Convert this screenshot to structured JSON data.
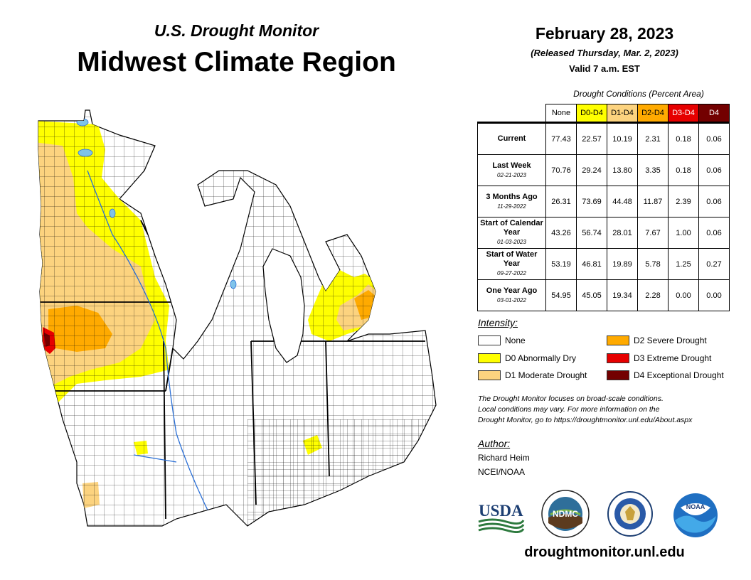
{
  "header": {
    "subtitle": "U.S. Drought Monitor",
    "title": "Midwest Climate Region"
  },
  "info": {
    "date": "February 28, 2023",
    "released": "(Released Thursday, Mar. 2, 2023)",
    "valid": "Valid 7 a.m. EST"
  },
  "table": {
    "caption": "Drought Conditions (Percent Area)",
    "columns": [
      "None",
      "D0-D4",
      "D1-D4",
      "D2-D4",
      "D3-D4",
      "D4"
    ],
    "rows": [
      {
        "label": "Current",
        "date": "",
        "values": [
          "77.43",
          "22.57",
          "10.19",
          "2.31",
          "0.18",
          "0.06"
        ]
      },
      {
        "label": "Last Week",
        "date": "02-21-2023",
        "values": [
          "70.76",
          "29.24",
          "13.80",
          "3.35",
          "0.18",
          "0.06"
        ]
      },
      {
        "label": "3 Months Ago",
        "date": "11-29-2022",
        "values": [
          "26.31",
          "73.69",
          "44.48",
          "11.87",
          "2.39",
          "0.06"
        ]
      },
      {
        "label": "Start of Calendar Year",
        "date": "01-03-2023",
        "values": [
          "43.26",
          "56.74",
          "28.01",
          "7.67",
          "1.00",
          "0.06"
        ]
      },
      {
        "label": "Start of Water Year",
        "date": "09-27-2022",
        "values": [
          "53.19",
          "46.81",
          "19.89",
          "5.78",
          "1.25",
          "0.27"
        ]
      },
      {
        "label": "One Year Ago",
        "date": "03-01-2022",
        "values": [
          "54.95",
          "45.05",
          "19.34",
          "2.28",
          "0.00",
          "0.00"
        ]
      }
    ]
  },
  "legend": {
    "title": "Intensity:",
    "items": [
      {
        "label": "None",
        "color": "#ffffff"
      },
      {
        "label": "D0 Abnormally Dry",
        "color": "#ffff00"
      },
      {
        "label": "D1 Moderate Drought",
        "color": "#fcd37f"
      },
      {
        "label": "D2 Severe Drought",
        "color": "#ffaa00"
      },
      {
        "label": "D3 Extreme Drought",
        "color": "#e60000"
      },
      {
        "label": "D4 Exceptional Drought",
        "color": "#730000"
      }
    ]
  },
  "note": {
    "line1": "The Drought Monitor focuses on broad-scale conditions.",
    "line2": "Local conditions may vary. For more information on the",
    "line3": "Drought Monitor, go to https://droughtmonitor.unl.edu/About.aspx"
  },
  "author": {
    "title": "Author:",
    "name": "Richard Heim",
    "org": "NCEI/NOAA"
  },
  "logos": {
    "usda": "USDA",
    "ndmc": "NDMC",
    "noaa": "NOAA"
  },
  "footer": {
    "website": "droughtmonitor.unl.edu"
  }
}
